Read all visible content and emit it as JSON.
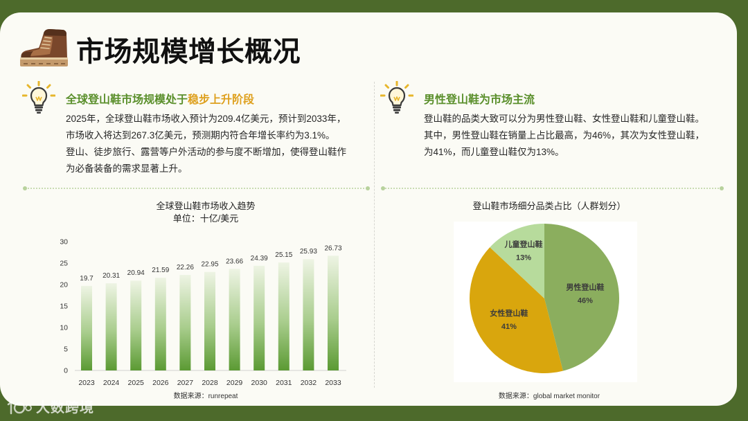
{
  "slide": {
    "title": "市场规模增长概况",
    "colors": {
      "frame": "#4d6a2b",
      "card": "#fbfbf5",
      "heading_green": "#5a8f2b",
      "heading_orange": "#dea01e"
    }
  },
  "icons": {
    "title_icon": "hiking-boot-icon",
    "section_icon": "lightbulb-icon",
    "watermark_icon": "brand-logo-icon"
  },
  "left_section": {
    "heading_green": "全球登山鞋市场规模处于",
    "heading_orange": "稳步上升阶段",
    "lines": [
      "2025年，全球登山鞋市场收入预计为209.4亿美元，预计到2033年，",
      "市场收入将达到267.3亿美元，预测期内符合年增长率约为3.1%。",
      "登山、徒步旅行、露营等户外活动的参与度不断增加，使得登山鞋作",
      "为必备装备的需求显著上升。"
    ]
  },
  "right_section": {
    "heading": "男性登山鞋为市场主流",
    "lines": [
      "登山鞋的品类大致可以分为男性登山鞋、女性登山鞋和儿童登山鞋。",
      "其中，男性登山鞋在销量上占比最高，为46%，其次为女性登山鞋，",
      "为41%，而儿童登山鞋仅为13%。"
    ]
  },
  "chart_data": [
    {
      "type": "bar",
      "title": "全球登山鞋市场收入趋势",
      "subtitle": "单位：十亿/美元",
      "categories": [
        "2023",
        "2024",
        "2025",
        "2026",
        "2027",
        "2028",
        "2029",
        "2030",
        "2031",
        "2032",
        "2033"
      ],
      "values": [
        19.7,
        20.31,
        20.94,
        21.59,
        22.26,
        22.95,
        23.66,
        24.39,
        25.15,
        25.93,
        26.73
      ],
      "ylim": [
        0,
        30
      ],
      "yticks": [
        0,
        5,
        10,
        15,
        20,
        25,
        30
      ],
      "grid": false,
      "data_labels": true,
      "source": "数据来源：runrepeat",
      "colors": {
        "bar_gradient": [
          "#eef4e4",
          "#a9cd8d",
          "#5b9a33"
        ],
        "axis": "#d0d0d0"
      }
    },
    {
      "type": "pie",
      "title": "登山鞋市场细分品类占比（人群划分）",
      "slices": [
        {
          "label": "男性登山鞋",
          "value": 46,
          "color": "#8bae5e"
        },
        {
          "label": "女性登山鞋",
          "value": 41,
          "color": "#d9a60d"
        },
        {
          "label": "儿童登山鞋",
          "value": 13,
          "color": "#b7db9c"
        }
      ],
      "value_suffix": "%",
      "data_labels": true,
      "source": "数据来源：global market monitor"
    }
  ],
  "watermark": {
    "text": "大数跨境"
  }
}
